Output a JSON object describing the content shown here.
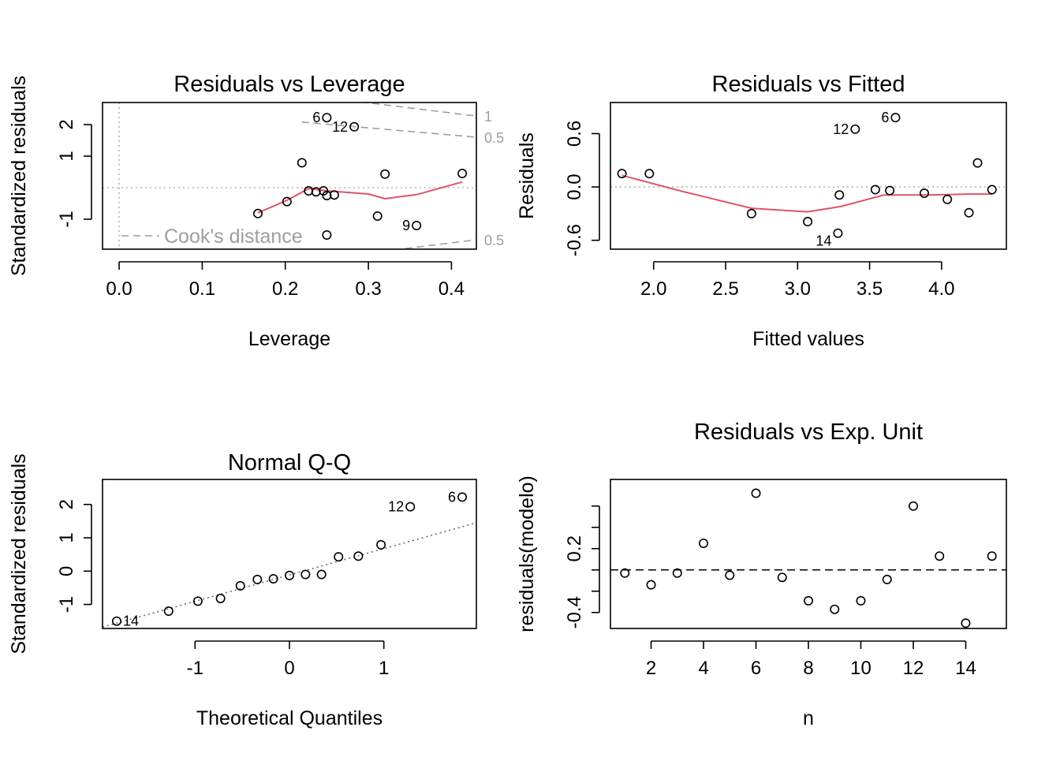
{
  "chart_data": [
    {
      "type": "scatter",
      "title": "Residuals vs Leverage",
      "xlabel": "Leverage",
      "ylabel": "Standardized residuals",
      "xlim": [
        -0.02,
        0.43
      ],
      "ylim": [
        -1.95,
        2.7
      ],
      "xticks": [
        0.0,
        0.1,
        0.2,
        0.3,
        0.4
      ],
      "xtick_labels": [
        "0.0",
        "0.1",
        "0.2",
        "0.3",
        "0.4"
      ],
      "yticks": [
        -1,
        1,
        2
      ],
      "ytick_labels": [
        "-1",
        "1",
        "2"
      ],
      "x": [
        0.167,
        0.202,
        0.22,
        0.228,
        0.237,
        0.246,
        0.25,
        0.25,
        0.25,
        0.259,
        0.283,
        0.311,
        0.32,
        0.358,
        0.413
      ],
      "y": [
        -0.82,
        -0.44,
        0.79,
        -0.1,
        -0.13,
        -0.1,
        -0.25,
        2.22,
        -1.5,
        -0.23,
        1.93,
        -0.9,
        0.43,
        -1.2,
        0.45
      ],
      "point_labels": [
        {
          "text": "6",
          "x": 0.25,
          "y": 2.22
        },
        {
          "text": "12",
          "x": 0.283,
          "y": 1.93
        },
        {
          "text": "9",
          "x": 0.358,
          "y": -1.2
        }
      ],
      "smooth_line": {
        "color": "#DF536B",
        "x": [
          0.167,
          0.202,
          0.228,
          0.25,
          0.3,
          0.32,
          0.358,
          0.413
        ],
        "y": [
          -0.8,
          -0.4,
          -0.03,
          -0.1,
          -0.2,
          -0.35,
          -0.22,
          0.18
        ]
      },
      "cooks_contours": [
        {
          "label": "1",
          "x": [
            0.22,
            0.43
          ],
          "y": [
            2.95,
            2.27
          ]
        },
        {
          "label": "0.5",
          "x": [
            0.22,
            0.43
          ],
          "y": [
            2.08,
            1.6
          ]
        },
        {
          "label": "0.5",
          "x": [
            0.33,
            0.43
          ],
          "y": [
            -1.98,
            -1.65
          ]
        }
      ],
      "legend": "Cook's distance",
      "legend_position": "bottom-left"
    },
    {
      "type": "scatter",
      "title": "Residuals vs Fitted",
      "xlabel": "Fitted values",
      "ylabel": "Residuals",
      "xlim": [
        1.7,
        4.45
      ],
      "ylim": [
        -0.7,
        0.95
      ],
      "xticks": [
        2.0,
        2.5,
        3.0,
        3.5,
        4.0
      ],
      "xtick_labels": [
        "2.0",
        "2.5",
        "3.0",
        "3.5",
        "4.0"
      ],
      "yticks": [
        -0.6,
        0.0,
        0.6
      ],
      "ytick_labels": [
        "-0.6",
        "0.0",
        "0.6"
      ],
      "x": [
        1.78,
        1.97,
        2.68,
        3.07,
        3.28,
        3.29,
        3.4,
        3.54,
        3.64,
        3.68,
        3.88,
        4.04,
        4.19,
        4.25,
        4.35
      ],
      "y": [
        0.15,
        0.15,
        -0.3,
        -0.39,
        -0.52,
        -0.09,
        0.65,
        -0.03,
        -0.04,
        0.78,
        -0.07,
        -0.14,
        -0.29,
        0.27,
        -0.03
      ],
      "point_labels": [
        {
          "text": "6",
          "x": 3.68,
          "y": 0.78
        },
        {
          "text": "12",
          "x": 3.4,
          "y": 0.65
        },
        {
          "text": "14",
          "x": 3.28,
          "y": -0.52
        }
      ],
      "smooth_line": {
        "color": "#DF536B",
        "x": [
          1.78,
          2.2,
          2.68,
          3.07,
          3.3,
          3.6,
          3.9,
          4.2,
          4.35
        ],
        "y": [
          0.13,
          -0.05,
          -0.24,
          -0.28,
          -0.22,
          -0.09,
          -0.09,
          -0.08,
          -0.08
        ]
      },
      "reference_line": {
        "y": 0
      }
    },
    {
      "type": "scatter",
      "title": "Normal Q-Q",
      "xlabel": "Theoretical Quantiles",
      "ylabel": "Standardized residuals",
      "xlim": [
        -1.98,
        1.98
      ],
      "ylim": [
        -1.72,
        2.75
      ],
      "xticks": [
        -1,
        0,
        1
      ],
      "xtick_labels": [
        "-1",
        "0",
        "1"
      ],
      "yticks": [
        -1,
        0,
        1,
        2
      ],
      "ytick_labels": [
        "-1",
        "0",
        "1",
        "2"
      ],
      "x": [
        -1.83,
        -1.28,
        -0.97,
        -0.73,
        -0.52,
        -0.34,
        -0.17,
        0.0,
        0.17,
        0.34,
        0.52,
        0.73,
        0.97,
        1.28,
        1.83
      ],
      "y": [
        -1.5,
        -1.2,
        -0.9,
        -0.82,
        -0.44,
        -0.25,
        -0.23,
        -0.13,
        -0.1,
        -0.1,
        0.43,
        0.45,
        0.79,
        1.93,
        2.22
      ],
      "point_labels": [
        {
          "text": "6",
          "x": 1.83,
          "y": 2.22
        },
        {
          "text": "12",
          "x": 1.28,
          "y": 1.93
        },
        {
          "text": "14",
          "x": -1.83,
          "y": -1.5
        }
      ],
      "qq_line": {
        "x": [
          -1.98,
          1.98
        ],
        "y": [
          -1.68,
          1.45
        ]
      }
    },
    {
      "type": "scatter",
      "title": "Residuals vs Exp. Unit",
      "xlabel": "n",
      "ylabel": "residuals(modelo)",
      "xlim": [
        0.45,
        15.55
      ],
      "ylim": [
        -0.55,
        0.85
      ],
      "xticks": [
        2,
        4,
        6,
        8,
        10,
        12,
        14
      ],
      "xtick_labels": [
        "2",
        "4",
        "6",
        "8",
        "10",
        "12",
        "14"
      ],
      "yticks": [
        -0.4,
        -0.2,
        0.0,
        0.2,
        0.4,
        0.6
      ],
      "ytick_labels": [
        "-0.4",
        "",
        "",
        "0.2",
        "",
        ""
      ],
      "x": [
        1,
        2,
        3,
        4,
        5,
        6,
        7,
        8,
        9,
        10,
        11,
        12,
        13,
        14,
        15
      ],
      "y": [
        -0.03,
        -0.14,
        -0.03,
        0.25,
        -0.05,
        0.72,
        -0.07,
        -0.29,
        -0.37,
        -0.29,
        -0.09,
        0.6,
        0.13,
        -0.5,
        0.13
      ],
      "reference_line": {
        "y": 0,
        "style": "dashed"
      }
    }
  ]
}
